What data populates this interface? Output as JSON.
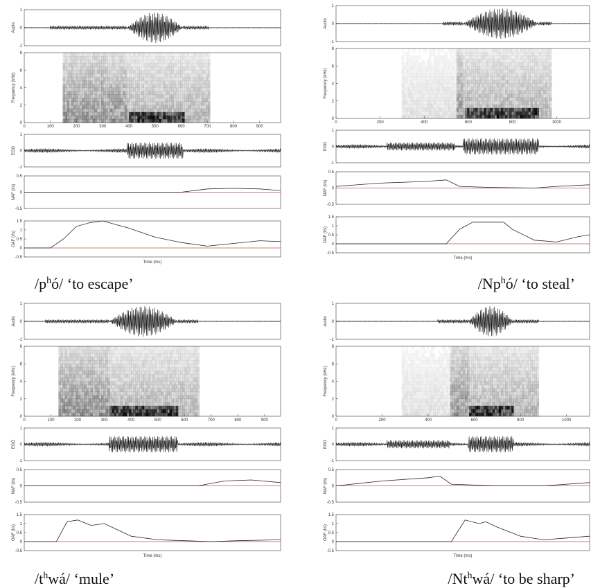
{
  "figures": [
    {
      "caption": {
        "before": "/p",
        "sup": "h",
        "after": "ó/ ‘to escape’"
      },
      "xlim": [
        0,
        980
      ],
      "xticks": [
        0,
        100,
        200,
        300,
        400,
        500,
        600,
        700,
        800,
        900
      ],
      "xlabel": "Time (ms)",
      "plots": [
        {
          "ylabel": "Audio",
          "ylim": [
            -1,
            1
          ],
          "yticks": [
            -1,
            0,
            1
          ]
        },
        {
          "ylabel": "Frequency (kHz)",
          "ylim": [
            0,
            8
          ],
          "yticks": [
            0,
            2,
            4,
            6,
            8
          ]
        },
        {
          "ylabel": "EGG",
          "ylim": [
            -1,
            1
          ],
          "yticks": [
            -1,
            0,
            1
          ]
        },
        {
          "ylabel": "NAF (l/s)",
          "ylim": [
            -0.5,
            0.5
          ],
          "yticks": [
            -0.5,
            0,
            0.5
          ],
          "x": [
            0,
            600,
            700,
            800,
            900,
            980
          ],
          "values": [
            0,
            0,
            0.1,
            0.12,
            0.1,
            0.05
          ]
        },
        {
          "ylabel": "OAF (l/s)",
          "ylim": [
            -0.5,
            1.5
          ],
          "yticks": [
            -0.5,
            0,
            0.5,
            1,
            1.5
          ],
          "x": [
            0,
            100,
            150,
            200,
            250,
            300,
            400,
            500,
            600,
            700,
            800,
            900,
            980
          ],
          "values": [
            0,
            0,
            0.5,
            1.2,
            1.4,
            1.5,
            1.1,
            0.6,
            0.3,
            0.1,
            0.25,
            0.4,
            0.35
          ]
        }
      ]
    },
    {
      "caption": {
        "before": "/Np",
        "sup": "h",
        "after": "ó/ ‘to steal’"
      },
      "xlim": [
        0,
        1150
      ],
      "xticks": [
        0,
        200,
        400,
        600,
        800,
        1000
      ],
      "xlabel": "Time (ms)",
      "plots": [
        {
          "ylabel": "Audio",
          "ylim": [
            -1,
            1
          ],
          "yticks": [
            -1,
            0,
            1
          ]
        },
        {
          "ylabel": "Frequency (kHz)",
          "ylim": [
            0,
            8
          ],
          "yticks": [
            0,
            2,
            4,
            6,
            8
          ]
        },
        {
          "ylabel": "EGG",
          "ylim": [
            -1,
            1
          ],
          "yticks": [
            -1,
            0,
            1
          ]
        },
        {
          "ylabel": "NAF (l/s)",
          "ylim": [
            -0.5,
            0.5
          ],
          "yticks": [
            -0.5,
            0,
            0.5
          ],
          "x": [
            0,
            200,
            400,
            500,
            560,
            700,
            900,
            1000,
            1150
          ],
          "values": [
            0.05,
            0.15,
            0.2,
            0.25,
            0.05,
            0.02,
            0,
            0.05,
            0.1
          ]
        },
        {
          "ylabel": "OAF (l/s)",
          "ylim": [
            -0.5,
            1.5
          ],
          "yticks": [
            -0.5,
            0,
            0.5,
            1,
            1.5
          ],
          "x": [
            0,
            500,
            560,
            620,
            700,
            760,
            800,
            900,
            1000,
            1100,
            1150
          ],
          "values": [
            0,
            0,
            0.8,
            1.2,
            1.2,
            1.2,
            0.8,
            0.2,
            0.1,
            0.4,
            0.5
          ]
        }
      ]
    },
    {
      "caption": {
        "before": "/t",
        "sup": "h",
        "after": "wá/ ‘mule’"
      },
      "xlim": [
        0,
        960
      ],
      "xticks": [
        0,
        100,
        200,
        300,
        400,
        500,
        600,
        700,
        800,
        900
      ],
      "xlabel": "Time (ms)",
      "plots": [
        {
          "ylabel": "Audio",
          "ylim": [
            -1,
            1
          ],
          "yticks": [
            -1,
            0,
            1
          ]
        },
        {
          "ylabel": "Frequency (kHz)",
          "ylim": [
            0,
            8
          ],
          "yticks": [
            0,
            2,
            4,
            6,
            8
          ]
        },
        {
          "ylabel": "EGG",
          "ylim": [
            -1,
            1
          ],
          "yticks": [
            -1,
            0,
            1
          ]
        },
        {
          "ylabel": "NAF (l/s)",
          "ylim": [
            -0.5,
            0.5
          ],
          "yticks": [
            -0.5,
            0,
            0.5
          ],
          "x": [
            0,
            650,
            750,
            850,
            960
          ],
          "values": [
            0,
            0,
            0.15,
            0.18,
            0.1
          ]
        },
        {
          "ylabel": "OAF (l/s)",
          "ylim": [
            -0.5,
            1.5
          ],
          "yticks": [
            -0.5,
            0,
            0.5,
            1,
            1.5
          ],
          "x": [
            0,
            120,
            160,
            200,
            250,
            300,
            400,
            500,
            600,
            700,
            800,
            960
          ],
          "values": [
            0,
            0,
            1.1,
            1.2,
            0.9,
            1.0,
            0.3,
            0.1,
            0.05,
            0,
            0.05,
            0.1
          ]
        }
      ]
    },
    {
      "caption": {
        "before": "/Nt",
        "sup": "h",
        "after": "wá/ ‘to be sharp’"
      },
      "xlim": [
        0,
        1100
      ],
      "xticks": [
        0,
        200,
        400,
        600,
        800,
        1000
      ],
      "xlabel": "Time (ms)",
      "plots": [
        {
          "ylabel": "Audio",
          "ylim": [
            -1,
            1
          ],
          "yticks": [
            -1,
            0,
            1
          ]
        },
        {
          "ylabel": "Frequency (kHz)",
          "ylim": [
            0,
            8
          ],
          "yticks": [
            0,
            2,
            4,
            6,
            8
          ]
        },
        {
          "ylabel": "EGG",
          "ylim": [
            -1,
            1
          ],
          "yticks": [
            -1,
            0,
            1
          ]
        },
        {
          "ylabel": "NAF (l/s)",
          "ylim": [
            -0.5,
            0.5
          ],
          "yticks": [
            -0.5,
            0,
            0.5
          ],
          "x": [
            0,
            200,
            400,
            450,
            500,
            700,
            900,
            1100
          ],
          "values": [
            0,
            0.15,
            0.25,
            0.3,
            0.05,
            0,
            0,
            0.1
          ]
        },
        {
          "ylabel": "OAF (l/s)",
          "ylim": [
            -0.5,
            1.5
          ],
          "yticks": [
            -0.5,
            0,
            0.5,
            1,
            1.5
          ],
          "x": [
            0,
            500,
            560,
            620,
            650,
            700,
            800,
            900,
            1000,
            1100
          ],
          "values": [
            0,
            0,
            1.2,
            1.0,
            1.1,
            0.8,
            0.3,
            0.1,
            0.2,
            0.3
          ]
        }
      ]
    }
  ]
}
